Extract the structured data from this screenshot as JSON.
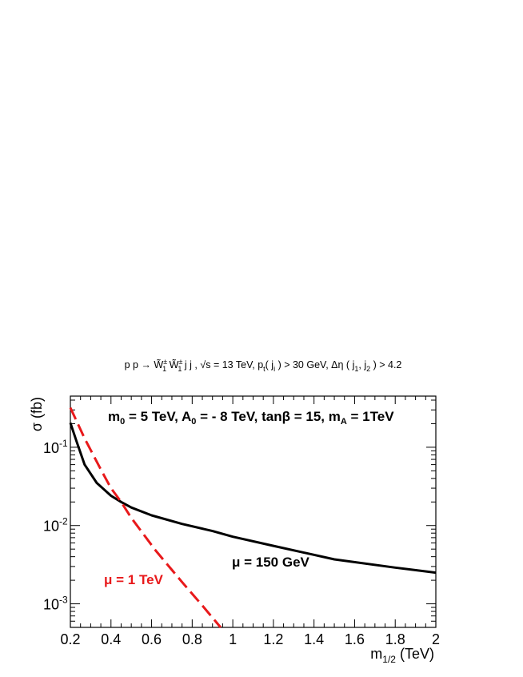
{
  "chart_data": {
    "type": "line",
    "title": "p p → W̃₁± W̃₁± j j , √s = 13 TeV, p_t( j_i ) > 30 GeV, Δη ( j_1, j_2 ) > 4.2",
    "xlabel": "m_{1/2} (TeV)",
    "ylabel": "σ (fb)",
    "xlim": [
      0.2,
      2.0
    ],
    "ylim": [
      0.0005,
      0.45
    ],
    "yscale": "log",
    "grid": false,
    "x_ticks": [
      "0.2",
      "0.4",
      "0.6",
      "0.8",
      "1",
      "1.2",
      "1.4",
      "1.6",
      "1.8",
      "2"
    ],
    "y_ticks": [
      {
        "value": 0.1,
        "label": "10^-1"
      },
      {
        "value": 0.01,
        "label": "10^-2"
      },
      {
        "value": 0.001,
        "label": "10^-3"
      }
    ],
    "annotation": "m_0 = 5 TeV, A_0 = - 8 TeV, tanβ = 15, m_A = 1TeV",
    "series": [
      {
        "name": "μ = 150 GeV",
        "color": "#000000",
        "dash": "solid",
        "x": [
          0.2,
          0.23,
          0.27,
          0.33,
          0.4,
          0.45,
          0.5,
          0.6,
          0.75,
          0.9,
          1.0,
          1.2,
          1.5,
          1.8,
          2.0
        ],
        "y": [
          0.205,
          0.12,
          0.06,
          0.035,
          0.024,
          0.02,
          0.017,
          0.0135,
          0.0105,
          0.0085,
          0.0072,
          0.0055,
          0.0037,
          0.0029,
          0.0025
        ]
      },
      {
        "name": "μ = 1 TeV",
        "color": "#e8191b",
        "dash": "dashed",
        "x": [
          0.2,
          0.27,
          0.35,
          0.4,
          0.45,
          0.5,
          0.62,
          0.75,
          0.85,
          0.94
        ],
        "y": [
          0.32,
          0.13,
          0.052,
          0.03,
          0.02,
          0.0125,
          0.0048,
          0.0019,
          0.00095,
          0.0005
        ]
      }
    ]
  }
}
